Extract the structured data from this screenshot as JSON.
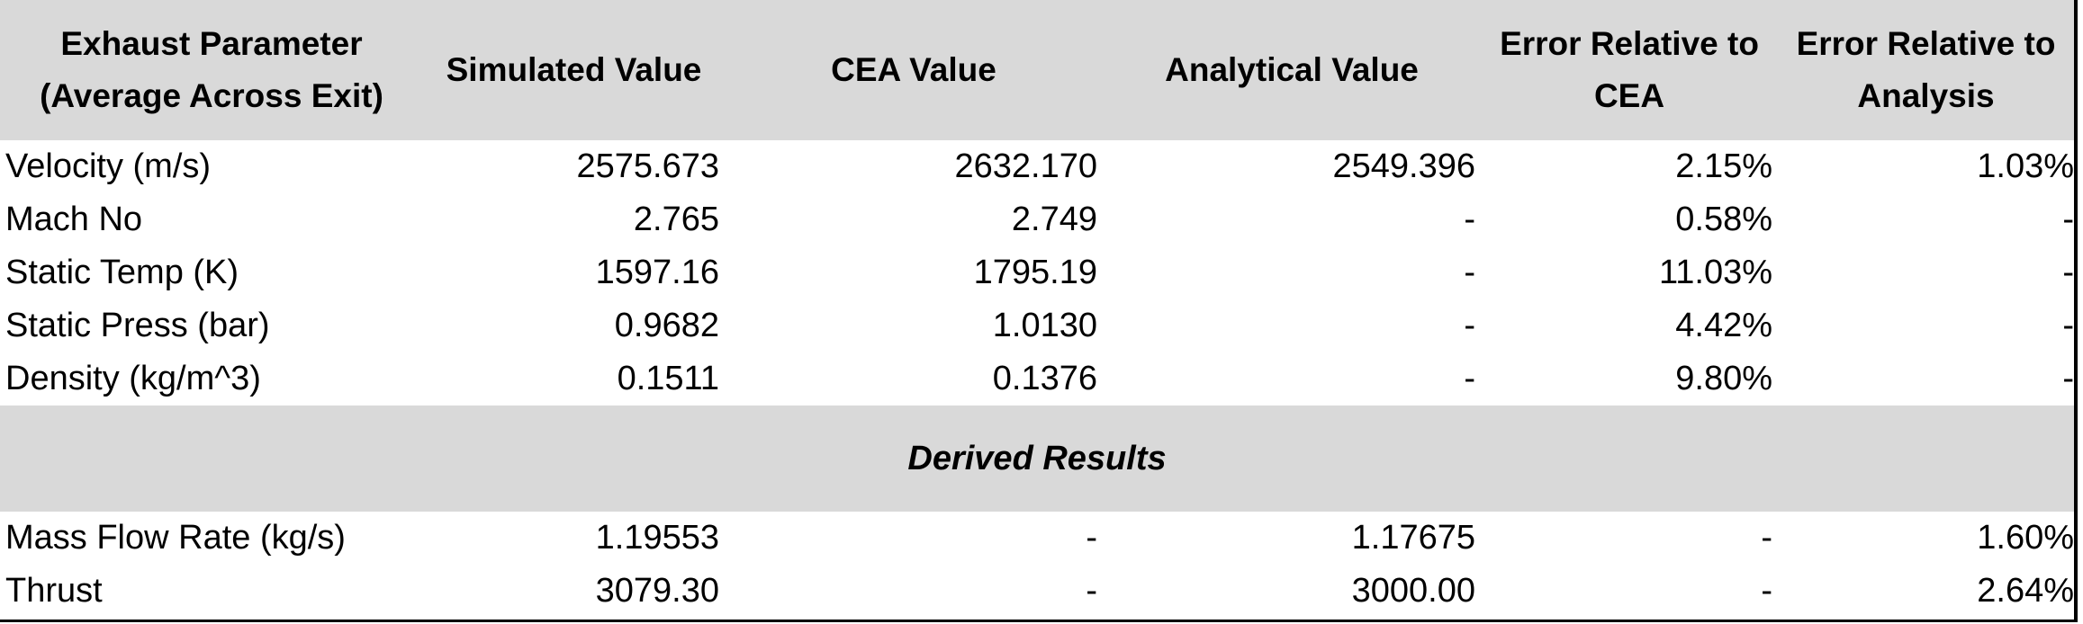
{
  "table": {
    "headers": [
      [
        "Exhaust Parameter",
        "(Average Across Exit)"
      ],
      [
        "Simulated Value"
      ],
      [
        "CEA Value"
      ],
      [
        "Analytical Value"
      ],
      [
        "Error Relative to",
        "CEA"
      ],
      [
        "Error Relative to",
        "Analysis"
      ]
    ],
    "rows": [
      [
        "Velocity (m/s)",
        "2575.673",
        "2632.170",
        "2549.396",
        "2.15%",
        "1.03%"
      ],
      [
        "Mach No",
        "2.765",
        "2.749",
        "-",
        "0.58%",
        "-"
      ],
      [
        "Static Temp (K)",
        "1597.16",
        "1795.19",
        "-",
        "11.03%",
        "-"
      ],
      [
        "Static Press (bar)",
        "0.9682",
        "1.0130",
        "-",
        "4.42%",
        "-"
      ],
      [
        "Density (kg/m^3)",
        "0.1511",
        "0.1376",
        "-",
        "9.80%",
        "-"
      ]
    ],
    "section_title": "Derived Results",
    "derived_rows": [
      [
        "Mass Flow Rate (kg/s)",
        "1.19553",
        "-",
        "1.17675",
        "-",
        "1.60%"
      ],
      [
        "Thrust",
        "3079.30",
        "-",
        "3000.00",
        "-",
        "2.64%"
      ]
    ]
  },
  "colors": {
    "header_bg": "#d9d9d9",
    "border": "#000000"
  }
}
